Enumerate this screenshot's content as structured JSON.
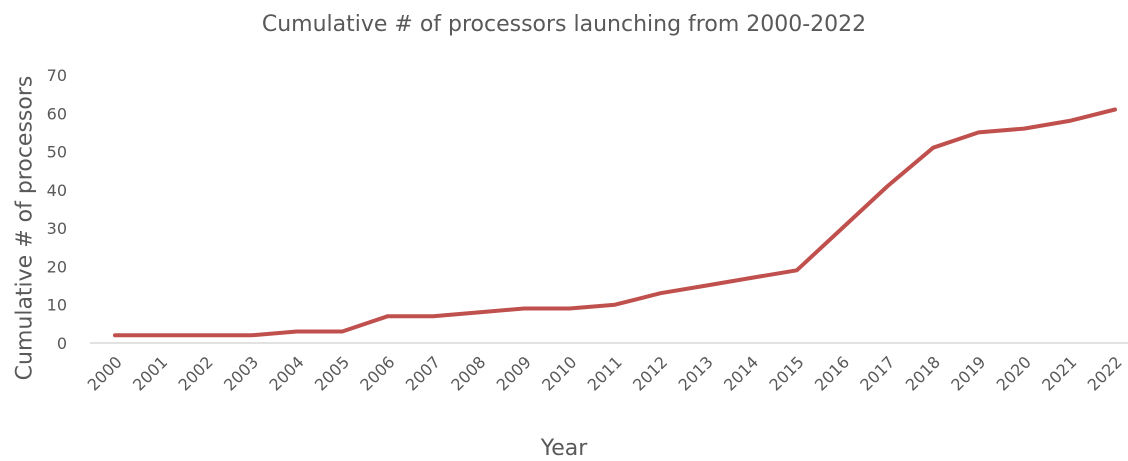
{
  "chart_data": {
    "type": "line",
    "title": "Cumulative # of processors launching from 2000-2022",
    "xlabel": "Year",
    "ylabel": "Cumulative # of processors",
    "categories": [
      "2000",
      "2001",
      "2002",
      "2003",
      "2004",
      "2005",
      "2006",
      "2007",
      "2008",
      "2009",
      "2010",
      "2011",
      "2012",
      "2013",
      "2014",
      "2015",
      "2016",
      "2017",
      "2018",
      "2019",
      "2020",
      "2021",
      "2022"
    ],
    "values": [
      2,
      2,
      2,
      2,
      3,
      3,
      7,
      7,
      8,
      9,
      9,
      10,
      13,
      15,
      17,
      19,
      30,
      41,
      51,
      55,
      56,
      58,
      61
    ],
    "ylim": [
      0,
      70
    ],
    "yticks": [
      0,
      10,
      20,
      30,
      40,
      50,
      60,
      70
    ],
    "grid": false,
    "legend": "none",
    "colors": {
      "line": "#C0504D",
      "axis": "#D9D9D9",
      "text": "#595959"
    }
  }
}
